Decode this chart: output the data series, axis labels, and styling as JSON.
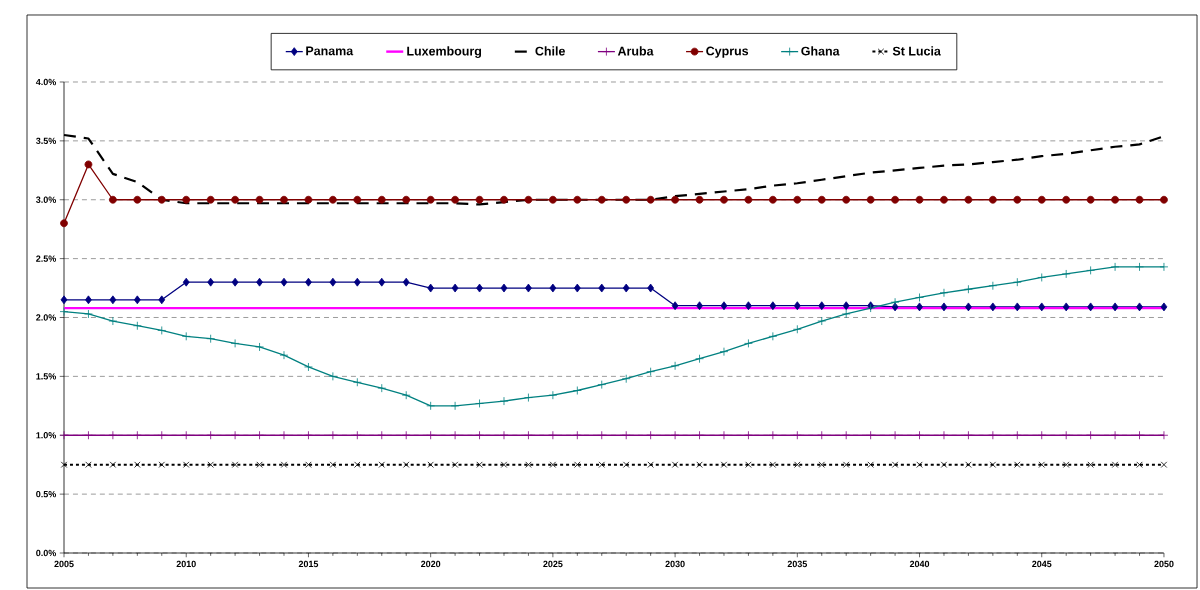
{
  "chart_data": {
    "type": "line",
    "x": [
      2005,
      2006,
      2007,
      2008,
      2009,
      2010,
      2011,
      2012,
      2013,
      2014,
      2015,
      2016,
      2017,
      2018,
      2019,
      2020,
      2021,
      2022,
      2023,
      2024,
      2025,
      2026,
      2027,
      2028,
      2029,
      2030,
      2031,
      2032,
      2033,
      2034,
      2035,
      2036,
      2037,
      2038,
      2039,
      2040,
      2041,
      2042,
      2043,
      2044,
      2045,
      2046,
      2047,
      2048,
      2049,
      2050
    ],
    "series": [
      {
        "name": "Panama",
        "color": "#000080",
        "marker": "diamond",
        "line_style": "solid",
        "values": [
          2.15,
          2.15,
          2.15,
          2.15,
          2.15,
          2.3,
          2.3,
          2.3,
          2.3,
          2.3,
          2.3,
          2.3,
          2.3,
          2.3,
          2.3,
          2.25,
          2.25,
          2.25,
          2.25,
          2.25,
          2.25,
          2.25,
          2.25,
          2.25,
          2.25,
          2.1,
          2.1,
          2.1,
          2.1,
          2.1,
          2.1,
          2.1,
          2.1,
          2.1,
          2.09,
          2.09,
          2.09,
          2.09,
          2.09,
          2.09,
          2.09,
          2.09,
          2.09,
          2.09,
          2.09,
          2.09
        ]
      },
      {
        "name": "Luxembourg",
        "color": "#ff00ff",
        "marker": "none",
        "line_style": "solid",
        "values": [
          2.08,
          2.08,
          2.08,
          2.08,
          2.08,
          2.08,
          2.08,
          2.08,
          2.08,
          2.08,
          2.08,
          2.08,
          2.08,
          2.08,
          2.08,
          2.08,
          2.08,
          2.08,
          2.08,
          2.08,
          2.08,
          2.08,
          2.08,
          2.08,
          2.08,
          2.08,
          2.08,
          2.08,
          2.08,
          2.08,
          2.08,
          2.08,
          2.08,
          2.08,
          2.08,
          2.08,
          2.08,
          2.08,
          2.08,
          2.08,
          2.08,
          2.08,
          2.08,
          2.08,
          2.08,
          2.08
        ]
      },
      {
        "name": "Chile",
        "color": "#000000",
        "marker": "none",
        "line_style": "dashed",
        "values": [
          3.55,
          3.52,
          3.22,
          3.15,
          3.0,
          2.97,
          2.97,
          2.97,
          2.97,
          2.97,
          2.97,
          2.97,
          2.97,
          2.97,
          2.97,
          2.97,
          2.97,
          2.96,
          2.98,
          3.0,
          3.0,
          3.0,
          3.0,
          3.0,
          3.0,
          3.03,
          3.05,
          3.07,
          3.09,
          3.12,
          3.14,
          3.17,
          3.2,
          3.23,
          3.25,
          3.27,
          3.29,
          3.3,
          3.32,
          3.34,
          3.37,
          3.39,
          3.42,
          3.45,
          3.47,
          3.54
        ]
      },
      {
        "name": "Aruba",
        "color": "#800080",
        "marker": "plus",
        "line_style": "solid",
        "values": [
          1.0,
          1.0,
          1.0,
          1.0,
          1.0,
          1.0,
          1.0,
          1.0,
          1.0,
          1.0,
          1.0,
          1.0,
          1.0,
          1.0,
          1.0,
          1.0,
          1.0,
          1.0,
          1.0,
          1.0,
          1.0,
          1.0,
          1.0,
          1.0,
          1.0,
          1.0,
          1.0,
          1.0,
          1.0,
          1.0,
          1.0,
          1.0,
          1.0,
          1.0,
          1.0,
          1.0,
          1.0,
          1.0,
          1.0,
          1.0,
          1.0,
          1.0,
          1.0,
          1.0,
          1.0,
          1.0
        ]
      },
      {
        "name": "Cyprus",
        "color": "#800000",
        "marker": "circle",
        "line_style": "solid",
        "values": [
          2.8,
          3.3,
          3.0,
          3.0,
          3.0,
          3.0,
          3.0,
          3.0,
          3.0,
          3.0,
          3.0,
          3.0,
          3.0,
          3.0,
          3.0,
          3.0,
          3.0,
          3.0,
          3.0,
          3.0,
          3.0,
          3.0,
          3.0,
          3.0,
          3.0,
          3.0,
          3.0,
          3.0,
          3.0,
          3.0,
          3.0,
          3.0,
          3.0,
          3.0,
          3.0,
          3.0,
          3.0,
          3.0,
          3.0,
          3.0,
          3.0,
          3.0,
          3.0,
          3.0,
          3.0,
          3.0
        ]
      },
      {
        "name": "Ghana",
        "color": "#008080",
        "marker": "plus",
        "line_style": "solid",
        "values": [
          2.05,
          2.03,
          1.97,
          1.93,
          1.89,
          1.84,
          1.82,
          1.78,
          1.75,
          1.68,
          1.58,
          1.5,
          1.45,
          1.4,
          1.34,
          1.25,
          1.25,
          1.27,
          1.29,
          1.32,
          1.34,
          1.38,
          1.43,
          1.48,
          1.54,
          1.59,
          1.65,
          1.71,
          1.78,
          1.84,
          1.9,
          1.97,
          2.03,
          2.08,
          2.13,
          2.17,
          2.21,
          2.24,
          2.27,
          2.3,
          2.34,
          2.37,
          2.4,
          2.43,
          2.43,
          2.43
        ]
      },
      {
        "name": "St Lucia",
        "color": "#000000",
        "marker": "cross",
        "line_style": "dotted",
        "values": [
          0.75,
          0.75,
          0.75,
          0.75,
          0.75,
          0.75,
          0.75,
          0.75,
          0.75,
          0.75,
          0.75,
          0.75,
          0.75,
          0.75,
          0.75,
          0.75,
          0.75,
          0.75,
          0.75,
          0.75,
          0.75,
          0.75,
          0.75,
          0.75,
          0.75,
          0.75,
          0.75,
          0.75,
          0.75,
          0.75,
          0.75,
          0.75,
          0.75,
          0.75,
          0.75,
          0.75,
          0.75,
          0.75,
          0.75,
          0.75,
          0.75,
          0.75,
          0.75,
          0.75,
          0.75,
          0.75
        ]
      }
    ],
    "xlim": [
      2005,
      2050
    ],
    "xticks": [
      2005,
      2010,
      2015,
      2020,
      2025,
      2030,
      2035,
      2040,
      2045,
      2050
    ],
    "ylim": [
      0,
      4
    ],
    "yticks": [
      {
        "value": 0,
        "label": "0.0%"
      },
      {
        "value": 0.5,
        "label": "0.5%"
      },
      {
        "value": 1,
        "label": "1.0%"
      },
      {
        "value": 1.5,
        "label": "1.5%"
      },
      {
        "value": 2,
        "label": "2.0%"
      },
      {
        "value": 2.5,
        "label": "2.5%"
      },
      {
        "value": 3,
        "label": "3.0%"
      },
      {
        "value": 3.5,
        "label": "3.5%"
      },
      {
        "value": 4,
        "label": "4.0%"
      }
    ],
    "grid": "y",
    "legend": "top"
  }
}
